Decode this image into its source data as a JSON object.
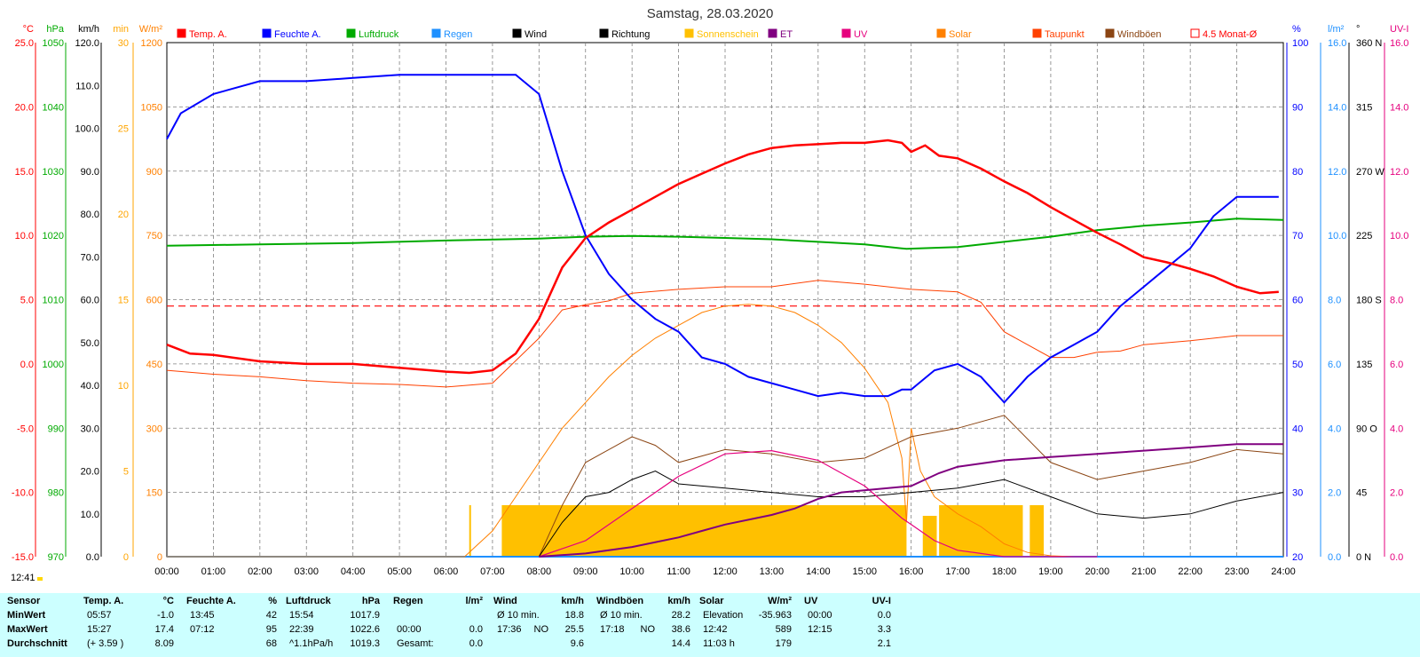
{
  "title": "Samstag, 28.03.2020",
  "timestamp": "12:41",
  "legend": [
    {
      "label": "Temp. A.",
      "color": "#ff0000",
      "fill": true
    },
    {
      "label": "Feuchte A.",
      "color": "#0000ff",
      "fill": true
    },
    {
      "label": "Luftdruck",
      "color": "#00aa00",
      "fill": true
    },
    {
      "label": "Regen",
      "color": "#1e90ff",
      "fill": true
    },
    {
      "label": "Wind",
      "color": "#000000",
      "fill": true
    },
    {
      "label": "Richtung",
      "color": "#000000",
      "fill": true
    },
    {
      "label": "Sonnenschein",
      "color": "#ffc000",
      "fill": true
    },
    {
      "label": "ET",
      "color": "#800080",
      "fill": true
    },
    {
      "label": "UV",
      "color": "#e6007e",
      "fill": true
    },
    {
      "label": "Solar",
      "color": "#ff8000",
      "fill": true
    },
    {
      "label": "Taupunkt",
      "color": "#ff4000",
      "fill": true
    },
    {
      "label": "Windböen",
      "color": "#8b4513",
      "fill": true
    },
    {
      "label": "4.5 Monat-Ø",
      "color": "#ff0000",
      "fill": false
    }
  ],
  "axes_left": [
    {
      "unit": "°C",
      "color": "#ff0000",
      "ticks": [
        "25.0",
        "20.0",
        "15.0",
        "10.0",
        "5.0",
        "0.0",
        "-5.0",
        "-10.0",
        "-15.0"
      ]
    },
    {
      "unit": "hPa",
      "color": "#00aa00",
      "ticks": [
        "1050",
        "1040",
        "1030",
        "1020",
        "1010",
        "1000",
        "990",
        "980",
        "970"
      ]
    },
    {
      "unit": "km/h",
      "color": "#000000",
      "ticks": [
        "120.0",
        "110.0",
        "100.0",
        "90.0",
        "80.0",
        "70.0",
        "60.0",
        "50.0",
        "40.0",
        "30.0",
        "20.0",
        "10.0",
        "0.0"
      ]
    },
    {
      "unit": "min",
      "color": "#ffa500",
      "ticks": [
        "30",
        "25",
        "20",
        "15",
        "10",
        "5",
        "0"
      ]
    },
    {
      "unit": "W/m²",
      "color": "#ff8000",
      "ticks": [
        "1200",
        "1050",
        "900",
        "750",
        "600",
        "450",
        "300",
        "150",
        "0"
      ]
    }
  ],
  "axes_right": [
    {
      "unit": "%",
      "color": "#0000ff",
      "ticks": [
        "100",
        "90",
        "80",
        "70",
        "60",
        "50",
        "40",
        "30",
        "20"
      ]
    },
    {
      "unit": "l/m²",
      "color": "#1e90ff",
      "ticks": [
        "16.0",
        "14.0",
        "12.0",
        "10.0",
        "8.0",
        "6.0",
        "4.0",
        "2.0",
        "0.0"
      ]
    },
    {
      "unit": "°",
      "color": "#000000",
      "ticks": [
        "360 N",
        "315",
        "270 W",
        "225",
        "180 S",
        "135",
        "90 O",
        "45",
        "0 N"
      ]
    },
    {
      "unit": "UV-I",
      "color": "#e6007e",
      "ticks": [
        "16.0",
        "14.0",
        "12.0",
        "10.0",
        "8.0",
        "6.0",
        "4.0",
        "2.0",
        "0.0"
      ]
    }
  ],
  "x_ticks": [
    "00:00",
    "01:00",
    "02:00",
    "03:00",
    "04:00",
    "05:00",
    "06:00",
    "07:00",
    "08:00",
    "09:00",
    "10:00",
    "11:00",
    "12:00",
    "13:00",
    "14:00",
    "15:00",
    "16:00",
    "17:00",
    "18:00",
    "19:00",
    "20:00",
    "21:00",
    "22:00",
    "23:00",
    "24:00"
  ],
  "colors": {
    "stats_bg": "#ccffff",
    "grid": "#808080"
  },
  "chart_data": {
    "type": "line",
    "title": "Samstag, 28.03.2020",
    "x_range": [
      "00:00",
      "24:00"
    ],
    "series": [
      {
        "name": "Temp. A.",
        "unit": "°C",
        "color": "#ff0000",
        "x": [
          0,
          0.5,
          1,
          2,
          3,
          4,
          5,
          6,
          6.5,
          7,
          7.5,
          8,
          8.5,
          9,
          9.5,
          10,
          10.5,
          11,
          11.5,
          12,
          12.5,
          13,
          13.5,
          14,
          14.5,
          15,
          15.5,
          15.8,
          16,
          16.3,
          16.6,
          17,
          17.5,
          18,
          18.5,
          19,
          19.5,
          20,
          20.5,
          21,
          21.5,
          22,
          22.5,
          23,
          23.5,
          23.9
        ],
        "y": [
          1.5,
          0.8,
          0.7,
          0.2,
          0,
          0,
          -0.3,
          -0.6,
          -0.7,
          -0.5,
          0.8,
          3.5,
          7.5,
          9.8,
          11,
          12,
          13,
          14,
          14.8,
          15.6,
          16.3,
          16.8,
          17.0,
          17.1,
          17.2,
          17.2,
          17.4,
          17.2,
          16.5,
          17.0,
          16.2,
          16.0,
          15.2,
          14.2,
          13.3,
          12.2,
          11.2,
          10.2,
          9.3,
          8.3,
          7.9,
          7.4,
          6.8,
          6.0,
          5.5,
          5.6
        ]
      },
      {
        "name": "Feuchte A.",
        "unit": "%",
        "color": "#0000ff",
        "x": [
          0,
          0.3,
          1,
          2,
          3,
          4,
          5,
          6,
          7,
          7.5,
          8,
          8.5,
          9,
          9.5,
          10,
          10.5,
          11,
          11.5,
          12,
          12.5,
          13,
          13.5,
          14,
          14.5,
          15,
          15.5,
          15.8,
          16,
          16.5,
          17,
          17.5,
          18,
          18.5,
          19,
          19.5,
          20,
          20.5,
          21,
          21.5,
          22,
          22.5,
          23,
          23.3,
          23.9
        ],
        "y": [
          85,
          89,
          92,
          94,
          94,
          94.5,
          95,
          95,
          95,
          95,
          92,
          80,
          70,
          64,
          60,
          57,
          55,
          51,
          50,
          48,
          47,
          46,
          45,
          45.5,
          45,
          45,
          46,
          46,
          49,
          50,
          48,
          44,
          48,
          51,
          53,
          55,
          59,
          62,
          65,
          68,
          73,
          76,
          76,
          76
        ]
      },
      {
        "name": "Luftdruck",
        "unit": "hPa",
        "color": "#00aa00",
        "x": [
          0,
          2,
          4,
          6,
          8,
          9,
          10,
          11,
          12,
          13,
          14,
          15,
          15.9,
          17,
          18,
          19,
          20,
          21,
          22,
          23,
          24
        ],
        "y": [
          1018.4,
          1018.6,
          1018.8,
          1019.2,
          1019.5,
          1019.8,
          1019.9,
          1019.8,
          1019.6,
          1019.4,
          1019.0,
          1018.6,
          1017.9,
          1018.2,
          1019.0,
          1019.8,
          1020.8,
          1021.5,
          1022.0,
          1022.6,
          1022.4
        ]
      },
      {
        "name": "Solar",
        "unit": "W/m²",
        "color": "#ff8000",
        "x": [
          0,
          6.4,
          7,
          7.5,
          8,
          8.5,
          9,
          9.5,
          10,
          10.5,
          11,
          11.5,
          12,
          12.5,
          13,
          13.5,
          14,
          14.5,
          15,
          15.5,
          15.8,
          15.9,
          16,
          16.2,
          16.5,
          17,
          17.5,
          18,
          18.5,
          19,
          19.5
        ],
        "y": [
          0,
          0,
          60,
          140,
          220,
          300,
          360,
          420,
          470,
          510,
          540,
          570,
          585,
          589,
          585,
          570,
          540,
          500,
          440,
          360,
          230,
          80,
          300,
          200,
          140,
          100,
          70,
          30,
          10,
          2,
          0
        ]
      },
      {
        "name": "Taupunkt",
        "unit": "°C",
        "color": "#ff4000",
        "x": [
          0,
          1,
          2,
          3,
          4,
          5,
          6,
          7,
          8,
          8.5,
          9,
          9.5,
          10,
          11,
          12,
          13,
          14,
          15,
          16,
          17,
          17.5,
          18,
          18.5,
          19,
          19.5,
          20,
          20.5,
          21,
          22,
          23,
          24
        ],
        "y": [
          -0.5,
          -0.8,
          -1,
          -1.3,
          -1.5,
          -1.6,
          -1.8,
          -1.5,
          2,
          4.2,
          4.6,
          4.9,
          5.5,
          5.8,
          6.0,
          6.0,
          6.5,
          6.2,
          5.8,
          5.6,
          4.8,
          2.5,
          1.5,
          0.5,
          0.5,
          0.9,
          1.0,
          1.5,
          1.8,
          2.2,
          2.2
        ]
      },
      {
        "name": "Wind",
        "unit": "km/h",
        "color": "#000000",
        "x": [
          8,
          8.5,
          9,
          9.5,
          10,
          10.5,
          11,
          12,
          13,
          14,
          15,
          16,
          17,
          18,
          19,
          20,
          21,
          22,
          23,
          24
        ],
        "y": [
          0,
          8,
          14,
          15,
          18,
          20,
          17,
          16,
          15,
          14,
          14,
          15,
          16,
          18,
          14,
          10,
          9,
          10,
          13,
          15
        ]
      },
      {
        "name": "Windböen",
        "unit": "km/h",
        "color": "#8b4513",
        "x": [
          8,
          8.5,
          9,
          9.5,
          10,
          10.5,
          11,
          12,
          13,
          14,
          15,
          16,
          17,
          18,
          19,
          20,
          21,
          22,
          23,
          24
        ],
        "y": [
          0,
          12,
          22,
          25,
          28,
          26,
          22,
          25,
          24,
          22,
          23,
          28,
          30,
          33,
          22,
          18,
          20,
          22,
          25,
          24
        ]
      },
      {
        "name": "UV",
        "unit": "UV-I",
        "color": "#e6007e",
        "x": [
          8,
          9,
          10,
          11,
          12,
          13,
          14,
          15,
          15.8,
          16,
          16.5,
          17,
          17.5,
          18,
          19,
          20
        ],
        "y": [
          0,
          0.5,
          1.5,
          2.5,
          3.2,
          3.3,
          3.0,
          2.2,
          1.2,
          1.0,
          0.5,
          0.2,
          0.1,
          0,
          0,
          0
        ]
      },
      {
        "name": "ET",
        "unit": "l/m²",
        "color": "#800080",
        "x": [
          8,
          9,
          10,
          11,
          11.5,
          12,
          13,
          13.5,
          14,
          14.5,
          16,
          16.6,
          17,
          18,
          19,
          20,
          21,
          22,
          23,
          24
        ],
        "y": [
          0,
          0.1,
          0.3,
          0.6,
          0.8,
          1.0,
          1.3,
          1.5,
          1.8,
          2.0,
          2.2,
          2.6,
          2.8,
          3.0,
          3.1,
          3.2,
          3.3,
          3.4,
          3.5,
          3.5
        ]
      },
      {
        "name": "Sonnenschein",
        "unit": "min",
        "color": "#ffc000",
        "x": [
          6.5,
          7.2,
          8,
          9,
          10,
          11,
          12,
          13,
          14,
          15,
          15.9,
          16.2,
          16.5,
          17,
          18,
          18.4,
          18.8
        ],
        "y": [
          3,
          3,
          3,
          3,
          3,
          3,
          3,
          3,
          3,
          3,
          3,
          1.5,
          1.5,
          3,
          3,
          3,
          3
        ]
      },
      {
        "name": "Regen",
        "unit": "l/m²",
        "color": "#1e90ff",
        "x": [
          0,
          24
        ],
        "y": [
          0,
          0
        ]
      },
      {
        "name": "4.5 Monat-Ø",
        "unit": "°C",
        "color": "#ff0000",
        "x": [
          0,
          24
        ],
        "y": [
          4.5,
          4.5
        ]
      }
    ],
    "ylim_temp": [
      -15,
      25
    ],
    "ylim_hum": [
      20,
      100
    ],
    "ylim_press": [
      970,
      1050
    ],
    "ylim_wind": [
      0,
      120
    ],
    "ylim_solar": [
      0,
      1200
    ]
  },
  "stats": {
    "columns": [
      {
        "title": "Sensor",
        "unit": "",
        "rows": [
          {
            "label": "MinWert"
          },
          {
            "label": "MaxWert"
          },
          {
            "label": "Durchschnitt"
          }
        ]
      },
      {
        "title": "Temp. A.",
        "unit": "°C",
        "rows": [
          {
            "t": "05:57",
            "v": "-1.0"
          },
          {
            "t": "15:27",
            "v": "17.4"
          },
          {
            "t": "(+ 3.59 )",
            "v": "8.09"
          }
        ]
      },
      {
        "title": "Feuchte A.",
        "unit": "%",
        "rows": [
          {
            "t": "13:45",
            "v": "42"
          },
          {
            "t": "07:12",
            "v": "95"
          },
          {
            "t": "",
            "v": "68"
          }
        ]
      },
      {
        "title": "Luftdruck",
        "unit": "hPa",
        "rows": [
          {
            "t": "15:54",
            "v": "1017.9"
          },
          {
            "t": "22:39",
            "v": "1022.6"
          },
          {
            "t": "^1.1hPa/h",
            "v": "1019.3"
          }
        ]
      },
      {
        "title": "Regen",
        "unit": "l/m²",
        "rows": [
          {
            "t": "",
            "v": ""
          },
          {
            "t": "00:00",
            "v": "0.0"
          },
          {
            "t": "Gesamt:",
            "v": "0.0"
          }
        ]
      },
      {
        "title": "Wind",
        "unit": "km/h",
        "rows": [
          {
            "t": "Ø 10 min.",
            "v": "18.8"
          },
          {
            "t": "17:36",
            "m": "NO",
            "v": "25.5"
          },
          {
            "t": "",
            "v": "9.6"
          }
        ]
      },
      {
        "title": "Windböen",
        "unit": "km/h",
        "rows": [
          {
            "t": "Ø 10 min.",
            "v": "28.2"
          },
          {
            "t": "17:18",
            "m": "NO",
            "v": "38.6"
          },
          {
            "t": "",
            "v": "14.4"
          }
        ]
      },
      {
        "title": "Solar",
        "unit": "W/m²",
        "rows": [
          {
            "t": "Elevation",
            "v": "-35.963"
          },
          {
            "t": "12:42",
            "v": "589"
          },
          {
            "t": "11:03 h",
            "v": "179"
          }
        ]
      },
      {
        "title": "UV",
        "unit": "UV-I",
        "rows": [
          {
            "t": "00:00",
            "v": "0.0"
          },
          {
            "t": "12:15",
            "v": "3.3"
          },
          {
            "t": "",
            "v": "2.1"
          }
        ]
      }
    ]
  }
}
